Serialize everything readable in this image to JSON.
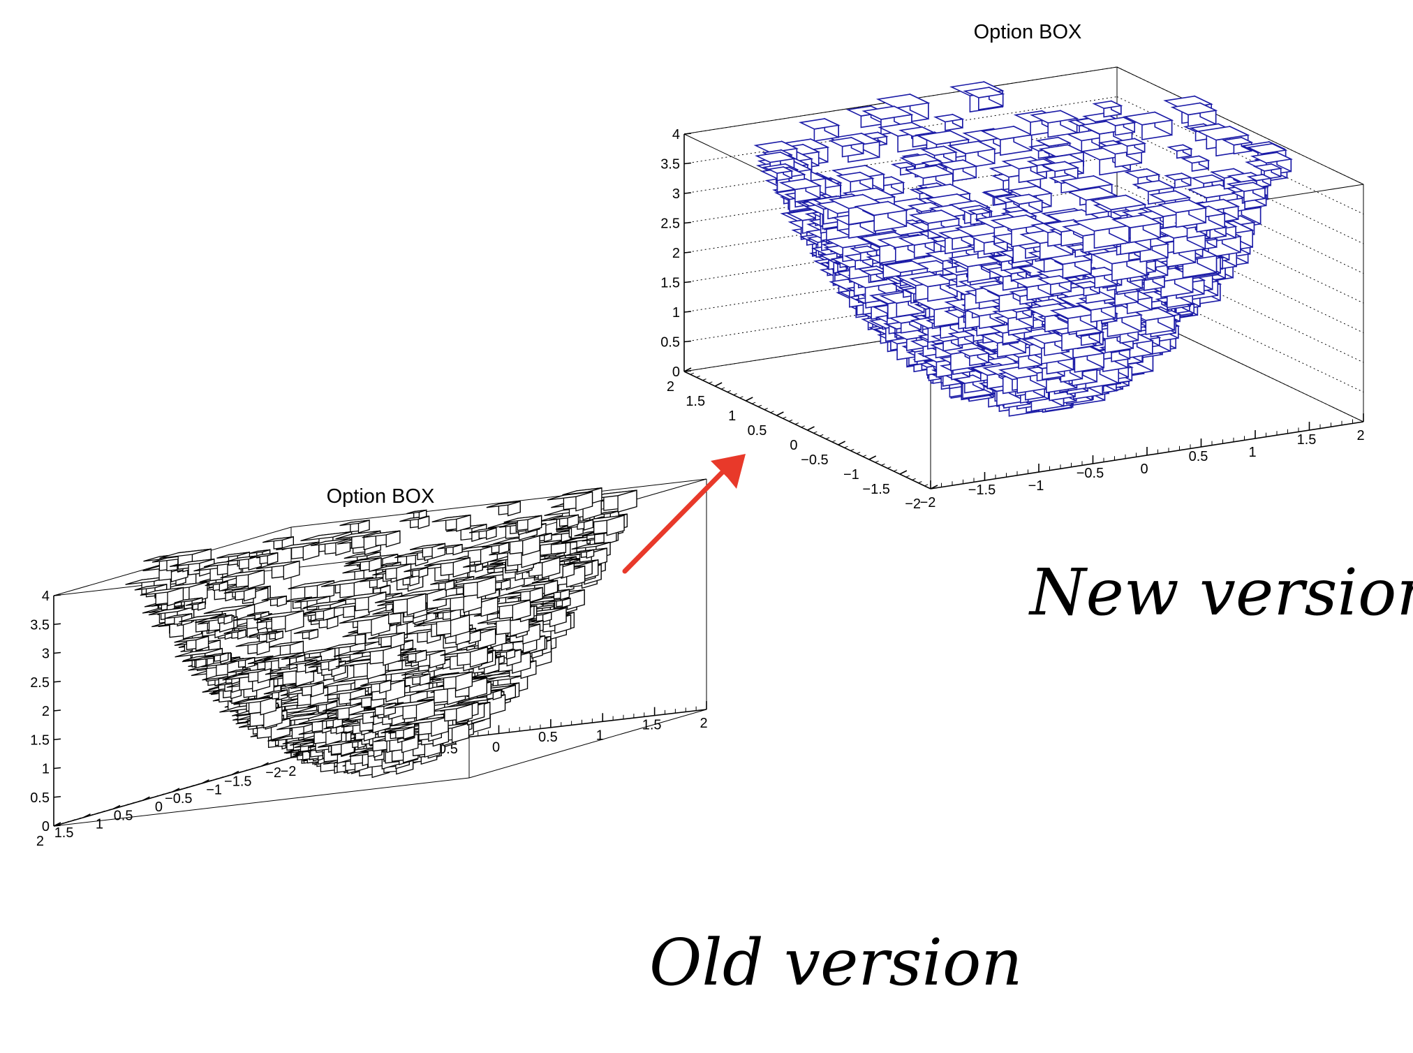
{
  "annotations": {
    "old_label": "Old version",
    "new_label": "New version",
    "arrow_color": "#e8392a"
  },
  "chart_data": [
    {
      "type": "lego-box-3d",
      "title": "Option BOX",
      "version_label": "Old version",
      "box_color": "#000000",
      "x_ticks": [
        "−2",
        "−1.5",
        "−1",
        "−0.5",
        "0",
        "0.5",
        "1",
        "1.5",
        "2"
      ],
      "y_ticks": [
        "2",
        "1.5",
        "1",
        "0.5",
        "0",
        "−0.5",
        "−1",
        "−1.5",
        "−2"
      ],
      "z_ticks": [
        "0",
        "0.5",
        "1",
        "1.5",
        "2",
        "2.5",
        "3",
        "3.5",
        "4"
      ],
      "xlim": [
        -2,
        2
      ],
      "ylim": [
        -2,
        2
      ],
      "zlim": [
        0,
        4
      ],
      "surface": "z = x^2 + y^2 (paraboloid bowl)",
      "grid": false
    },
    {
      "type": "lego-box-3d",
      "title": "Option BOX",
      "version_label": "New version",
      "box_color": "#1a1aa6",
      "x_ticks": [
        "−2",
        "−1.5",
        "−1",
        "−0.5",
        "0",
        "0.5",
        "1",
        "1.5",
        "2"
      ],
      "y_ticks": [
        "2",
        "1.5",
        "1",
        "0.5",
        "0",
        "−0.5",
        "−1",
        "−1.5",
        "−2"
      ],
      "z_ticks": [
        "0",
        "0.5",
        "1",
        "1.5",
        "2",
        "2.5",
        "3",
        "3.5",
        "4"
      ],
      "xlim": [
        -2,
        2
      ],
      "ylim": [
        -2,
        2
      ],
      "zlim": [
        0,
        4
      ],
      "surface": "z = x^2 + y^2 (paraboloid bowl)",
      "grid": true
    }
  ]
}
